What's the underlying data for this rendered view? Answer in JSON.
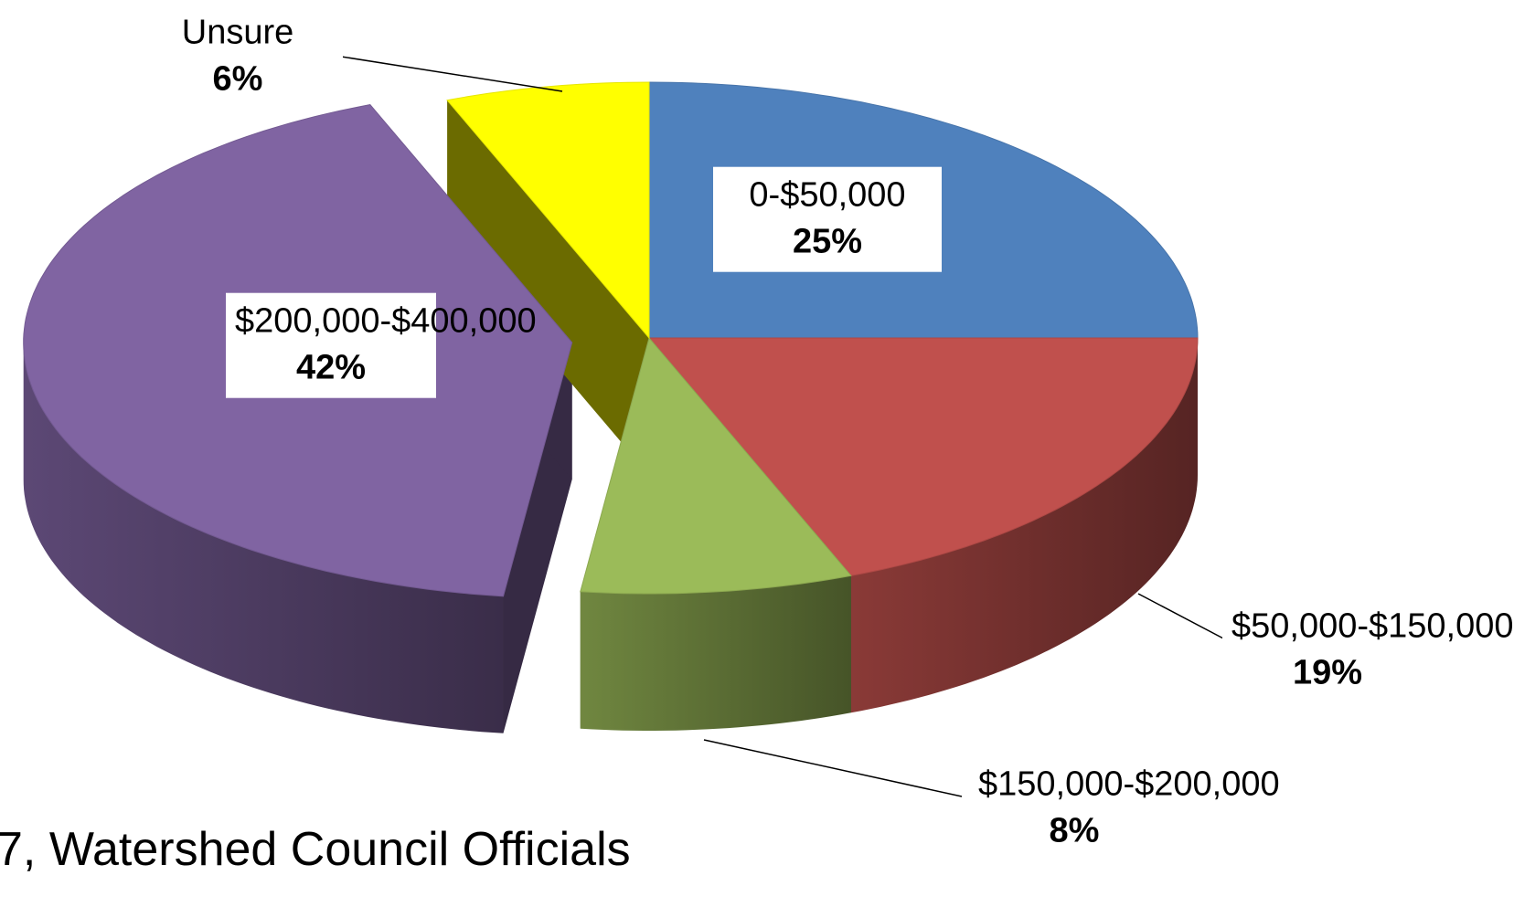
{
  "chart_data": {
    "type": "pie",
    "title": "7, Watershed Council Officials",
    "categories": [
      "0-$50,000",
      "$50,000-$150,000",
      "$150,000-$200,000",
      "$200,000-$400,000",
      "Unsure"
    ],
    "values": [
      25,
      19,
      8,
      42,
      6
    ],
    "value_labels": [
      "25%",
      "19%",
      "8%",
      "42%",
      "6%"
    ],
    "colors": [
      "#4f81bd",
      "#c0504d",
      "#9bbb59",
      "#8064a2",
      "#ffff00"
    ]
  }
}
